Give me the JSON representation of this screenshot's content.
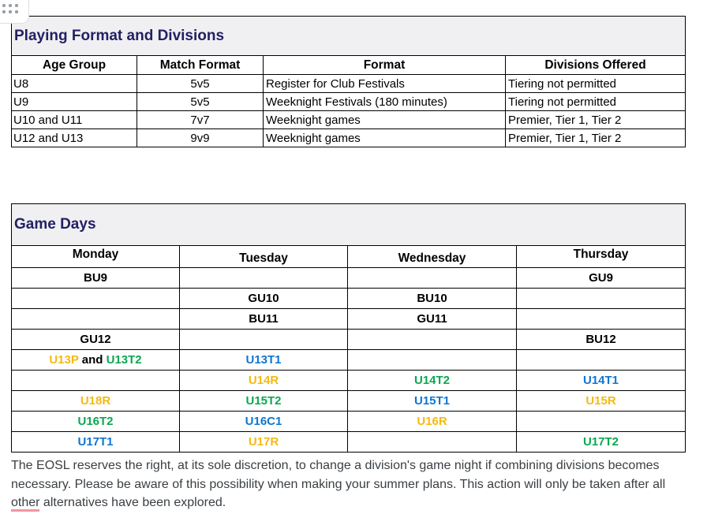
{
  "palette": {
    "gold": "#f5b912",
    "green": "#0ca750",
    "blue": "#0e76d1",
    "black": "#000000",
    "navy": "#232063",
    "title_bg": "#f0f0f3",
    "flag_underline": "#f295a2"
  },
  "drag_handle": {
    "icon": "six-dot-grid"
  },
  "format_table": {
    "title": "Playing Format and Divisions",
    "headers": [
      "Age Group",
      "Match Format",
      "Format",
      "Divisions Offered"
    ],
    "rows": [
      [
        "U8",
        "5v5",
        "Register for Club Festivals",
        "Tiering not permitted"
      ],
      [
        "U9",
        "5v5",
        "Weeknight Festivals (180 minutes)",
        "Tiering not permitted"
      ],
      [
        "U10 and U11",
        "7v7",
        "Weeknight games",
        "Premier, Tier 1, Tier 2"
      ],
      [
        "U12 and U13",
        "9v9",
        "Weeknight games",
        "Premier, Tier 1, Tier 2"
      ]
    ]
  },
  "gamedays_table": {
    "title": "Game Days",
    "headers": [
      "Monday",
      "Tuesday",
      "Wednesday",
      "Thursday"
    ],
    "rows": [
      [
        [
          {
            "text": "BU9",
            "color": "black"
          }
        ],
        [],
        [],
        [
          {
            "text": "GU9",
            "color": "black"
          }
        ]
      ],
      [
        [],
        [
          {
            "text": "GU10",
            "color": "black"
          }
        ],
        [
          {
            "text": "BU10",
            "color": "black"
          }
        ],
        []
      ],
      [
        [],
        [
          {
            "text": "BU11",
            "color": "black"
          }
        ],
        [
          {
            "text": "GU11",
            "color": "black"
          }
        ],
        []
      ],
      [
        [
          {
            "text": "GU12",
            "color": "black"
          }
        ],
        [],
        [],
        [
          {
            "text": "BU12",
            "color": "black"
          }
        ]
      ],
      [
        [
          {
            "text": "U13P",
            "color": "gold"
          },
          {
            "text": " and ",
            "color": "black"
          },
          {
            "text": "U13T2",
            "color": "green"
          }
        ],
        [
          {
            "text": "U13T1",
            "color": "blue"
          }
        ],
        [],
        []
      ],
      [
        [],
        [
          {
            "text": "U14R",
            "color": "gold"
          }
        ],
        [
          {
            "text": "U14T2",
            "color": "green"
          }
        ],
        [
          {
            "text": "U14T1",
            "color": "blue"
          }
        ]
      ],
      [
        [
          {
            "text": "U18R",
            "color": "gold"
          }
        ],
        [
          {
            "text": "U15T2",
            "color": "green"
          }
        ],
        [
          {
            "text": "U15T1",
            "color": "blue"
          }
        ],
        [
          {
            "text": "U15R",
            "color": "gold"
          }
        ]
      ],
      [
        [
          {
            "text": "U16T2",
            "color": "green"
          }
        ],
        [
          {
            "text": "U16C1",
            "color": "blue"
          }
        ],
        [
          {
            "text": "U16R",
            "color": "gold"
          }
        ],
        []
      ],
      [
        [
          {
            "text": "U17T1",
            "color": "blue"
          }
        ],
        [
          {
            "text": "U17R",
            "color": "gold"
          }
        ],
        [],
        [
          {
            "text": "U17T2",
            "color": "green"
          }
        ]
      ]
    ]
  },
  "footer": {
    "line1": "The EOSL reserves the right, at its sole discretion, to change a division's game night if combining divisions becomes",
    "line2": "necessary. Please be aware of this possibility when making your summer plans. This action will only be taken after all",
    "line3_flagged_word": "other",
    "line3_rest": " alternatives have been explored."
  }
}
